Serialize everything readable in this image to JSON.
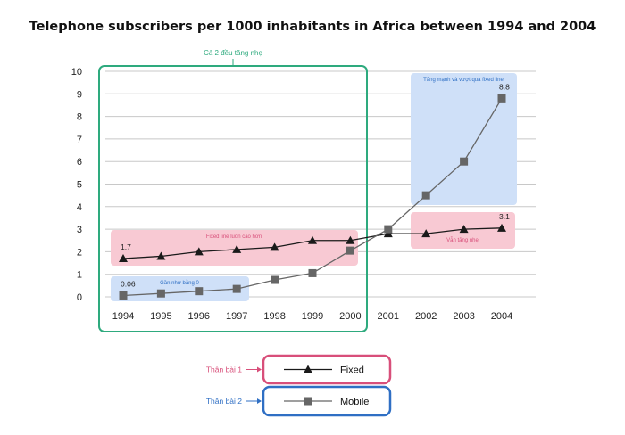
{
  "title": "Telephone subscribers per 1000 inhabitants in Africa between 1994 and 2004",
  "colors": {
    "fixed": "#1a1a1a",
    "mobile": "#666666",
    "green": "#2eaa7e",
    "pink": "#d84f7a",
    "blue": "#2f6fc4",
    "pinkFill": "#f8c9d3",
    "blueFill": "#cfe0f8",
    "grid": "#c8c8c8"
  },
  "chart_data": {
    "type": "line",
    "title": "Telephone subscribers per 1000 inhabitants in Africa between 1994 and 2004",
    "xlabel": "",
    "ylabel": "",
    "x": [
      "1994",
      "1995",
      "1996",
      "1997",
      "1998",
      "1999",
      "2000",
      "2001",
      "2002",
      "2003",
      "2004"
    ],
    "yticks": [
      "0",
      "1",
      "2",
      "3",
      "4",
      "5",
      "6",
      "7",
      "8",
      "9",
      "10"
    ],
    "ylim": [
      0,
      10
    ],
    "grid": true,
    "series": [
      {
        "name": "Fixed",
        "marker": "triangle",
        "values": [
          1.7,
          1.8,
          2.0,
          2.1,
          2.2,
          2.5,
          2.5,
          2.8,
          2.8,
          3.0,
          3.05
        ]
      },
      {
        "name": "Mobile",
        "marker": "square",
        "values": [
          0.06,
          0.15,
          0.25,
          0.35,
          0.75,
          1.05,
          2.05,
          3.0,
          4.5,
          6.0,
          8.8
        ]
      }
    ],
    "data_labels": [
      {
        "series": 0,
        "index": 0,
        "text": "1.7"
      },
      {
        "series": 1,
        "index": 0,
        "text": "0.06"
      },
      {
        "series": 1,
        "index": 10,
        "text": "8.8"
      },
      {
        "series": 0,
        "index": 10,
        "text": "3.1"
      }
    ],
    "annotations": {
      "green_box": "Cả 2 đều tăng nhẹ",
      "fixed_higher": "Fixed line luôn cao hơn",
      "near_zero": "Gần như bằng 0",
      "mobile_surge": "Tăng mạnh và vượt qua fixed line",
      "fixed_slight": "Vẫn tăng nhẹ"
    },
    "legend": {
      "placement": "bottom-center",
      "items": [
        {
          "series": "Fixed",
          "label": "Fixed",
          "tag": "Thân bài 1"
        },
        {
          "series": "Mobile",
          "label": "Mobile",
          "tag": "Thân bài 2"
        }
      ]
    }
  }
}
